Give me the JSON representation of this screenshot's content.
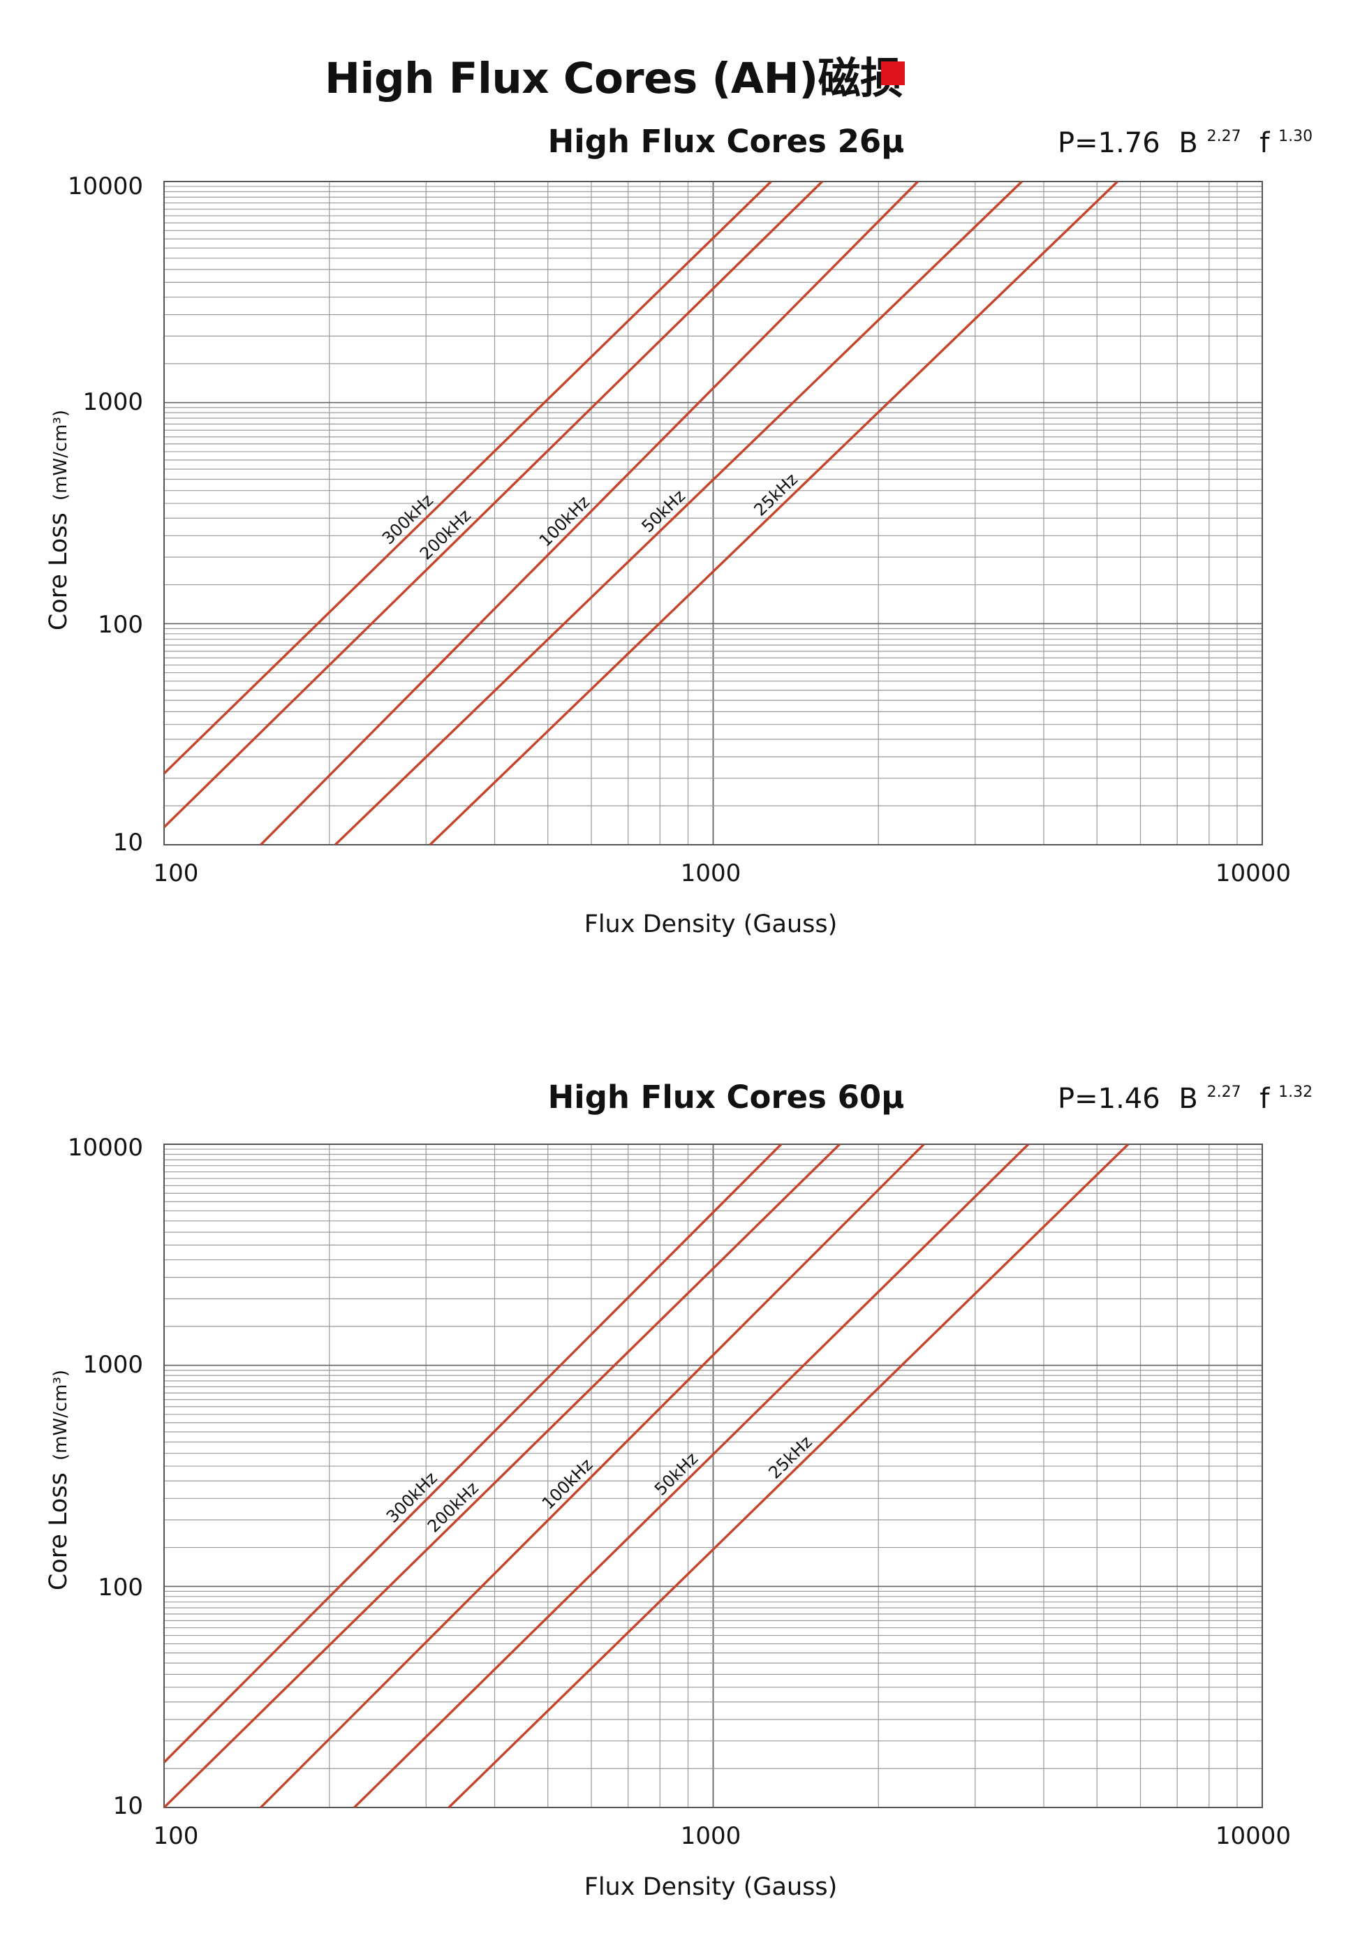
{
  "page": {
    "title": "High Flux Cores (AH)磁损",
    "accent_color": "#e0121b",
    "curve_color": "#c4452b"
  },
  "chart_data": [
    {
      "type": "line",
      "title": "High Flux Cores 26μ",
      "formula": {
        "prefix": "P=1.76",
        "b_symbol": "B",
        "b_exp": "2.27",
        "f_symbol": "f",
        "f_exp": "1.30"
      },
      "xlabel": "Flux Density (Gauss)",
      "ylabel": "Core Loss",
      "ylabel_unit": "(mW/cm³)",
      "xscale": "log",
      "yscale": "log",
      "xlim": [
        100,
        10000
      ],
      "ylim": [
        10,
        10000
      ],
      "xticks": [
        "100",
        "1000",
        "10000"
      ],
      "yticks": [
        "10",
        "100",
        "1000",
        "10000"
      ],
      "grid": true,
      "series": [
        {
          "name": "300kHz",
          "x": [
            100,
            1275
          ],
          "y": [
            21,
            10000
          ]
        },
        {
          "name": "200kHz",
          "x": [
            100,
            1580
          ],
          "y": [
            12,
            10000
          ]
        },
        {
          "name": "100kHz",
          "x": [
            150,
            2360
          ],
          "y": [
            10,
            10000
          ]
        },
        {
          "name": "50kHz",
          "x": [
            205,
            3650
          ],
          "y": [
            10,
            10000
          ]
        },
        {
          "name": "25kHz",
          "x": [
            305,
            5450
          ],
          "y": [
            10,
            10000
          ]
        }
      ]
    },
    {
      "type": "line",
      "title": "High Flux Cores 60μ",
      "formula": {
        "prefix": "P=1.46",
        "b_symbol": "B",
        "b_exp": "2.27",
        "f_symbol": "f",
        "f_exp": "1.32"
      },
      "xlabel": "Flux Density (Gauss)",
      "ylabel": "Core Loss",
      "ylabel_unit": "(mW/cm³)",
      "xscale": "log",
      "yscale": "log",
      "xlim": [
        100,
        10000
      ],
      "ylim": [
        10,
        10000
      ],
      "xticks": [
        "100",
        "1000",
        "10000"
      ],
      "yticks": [
        "10",
        "100",
        "1000",
        "10000"
      ],
      "grid": true,
      "series": [
        {
          "name": "300kHz",
          "x": [
            100,
            1330
          ],
          "y": [
            16,
            10000
          ]
        },
        {
          "name": "200kHz",
          "x": [
            100,
            1700
          ],
          "y": [
            10,
            10000
          ]
        },
        {
          "name": "100kHz",
          "x": [
            150,
            2420
          ],
          "y": [
            10,
            10000
          ]
        },
        {
          "name": "50kHz",
          "x": [
            222,
            3750
          ],
          "y": [
            10,
            10000
          ]
        },
        {
          "name": "25kHz",
          "x": [
            330,
            5700
          ],
          "y": [
            10,
            10000
          ]
        }
      ]
    }
  ]
}
